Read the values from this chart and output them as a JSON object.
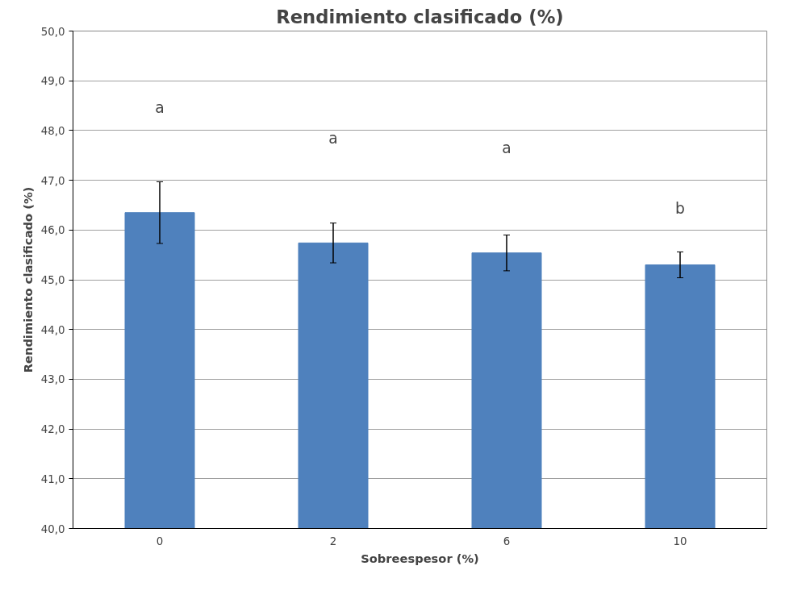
{
  "chart_data": {
    "type": "bar",
    "title": "Rendimiento clasificado (%)",
    "xlabel": "Sobreespesor (%)",
    "ylabel": "Rendimiento clasificado (%)",
    "categories": [
      "0",
      "2",
      "6",
      "10"
    ],
    "values": [
      46.35,
      45.74,
      45.54,
      45.3
    ],
    "errors": [
      0.62,
      0.4,
      0.36,
      0.26
    ],
    "color": "#4f81bd",
    "ylim": [
      40,
      50
    ],
    "yticks": [
      {
        "value": 40,
        "label": "40,0"
      },
      {
        "value": 41,
        "label": "41,0"
      },
      {
        "value": 42,
        "label": "42,0"
      },
      {
        "value": 43,
        "label": "43,0"
      },
      {
        "value": 44,
        "label": "44,0"
      },
      {
        "value": 45,
        "label": "45,0"
      },
      {
        "value": 46,
        "label": "46,0"
      },
      {
        "value": 47,
        "label": "47,0"
      },
      {
        "value": 48,
        "label": "48,0"
      },
      {
        "value": 49,
        "label": "49,0"
      },
      {
        "value": 50,
        "label": "50,0"
      }
    ],
    "grid": "y",
    "annotations": [
      "a",
      "a",
      "a",
      "b"
    ]
  }
}
